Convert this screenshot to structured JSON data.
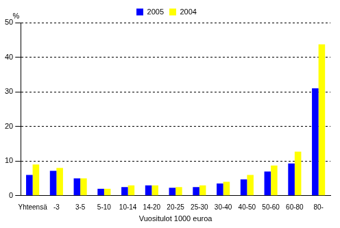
{
  "chart_data": {
    "type": "bar",
    "y_label": "%",
    "x_label": "Vuositulot 1000 euroa",
    "categories": [
      "Yhteensä",
      "-3",
      "3-5",
      "5-10",
      "10-14",
      "14-20",
      "20-25",
      "25-30",
      "30-40",
      "40-50",
      "50-60",
      "60-80",
      "80-"
    ],
    "series": [
      {
        "name": "2005",
        "color": "#0000ff",
        "values": [
          6,
          7.2,
          5,
          2,
          2.5,
          3,
          2.3,
          2.5,
          3.5,
          4.7,
          7,
          9.3,
          31
        ]
      },
      {
        "name": "2004",
        "color": "#ffff00",
        "values": [
          9,
          8,
          5,
          2,
          3,
          3,
          2.5,
          3,
          4,
          6,
          8.7,
          12.7,
          43.7
        ]
      }
    ],
    "ylim": [
      0,
      50
    ],
    "yticks": [
      0,
      10,
      20,
      30,
      40,
      50
    ],
    "grid": true,
    "legend": "top"
  }
}
